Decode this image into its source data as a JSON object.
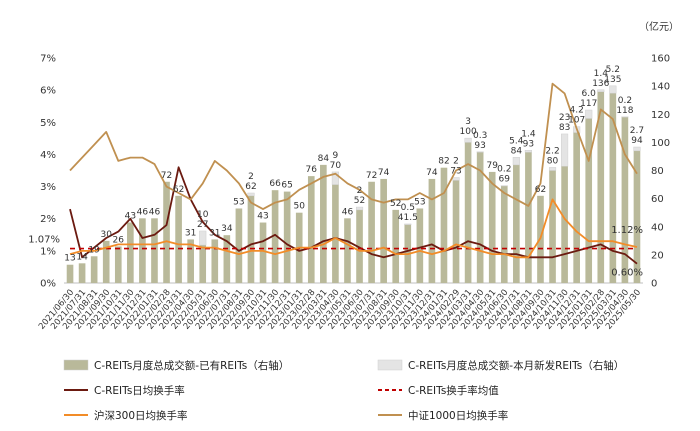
{
  "chart_data": {
    "type": "bar+line",
    "unit_right": "（亿元）",
    "categories": [
      "2021/06/30",
      "2021/07/31",
      "2021/08/31",
      "2021/09/30",
      "2021/10/31",
      "2021/11/30",
      "2021/12/31",
      "2022/01/31",
      "2022/02/28",
      "2022/03/31",
      "2022/04/30",
      "2022/05/31",
      "2022/06/30",
      "2022/07/31",
      "2022/08/31",
      "2022/09/30",
      "2022/10/31",
      "2022/11/30",
      "2022/12/31",
      "2023/01/31",
      "2023/02/28",
      "2023/03/31",
      "2023/04/30",
      "2023/05/31",
      "2023/06/30",
      "2023/07/31",
      "2023/08/31",
      "2023/09/30",
      "2023/10/31",
      "2023/11/30",
      "2023/12/31",
      "2024/01/31",
      "2024/02/29",
      "2024/03/31",
      "2024/04/30",
      "2024/05/31",
      "2024/06/30",
      "2024/07/31",
      "2024/08/31",
      "2024/09/30",
      "2024/10/31",
      "2024/11/30",
      "2024/12/31",
      "2025/01/31",
      "2025/02/28",
      "2025/03/31",
      "2025/04/30",
      "2025/05/30"
    ],
    "x_tick_labels": [
      "2021/06/30",
      "2021/07/31",
      "2021/08/31",
      "2021/09/30",
      "2021/10/31",
      "2021/11/30",
      "2021/12/31",
      "2022/01/31",
      "2022/02/28",
      "2022/03/31",
      "2022/04/30",
      "2022/05/31",
      "2022/06/30",
      "2022/07/31",
      "2022/08/31",
      "2022/09/30",
      "2022/10/31",
      "2022/11/30",
      "2022/12/31",
      "2023/01/31",
      "2023/02/28",
      "2023/03/31",
      "2023/04/30",
      "2023/05/31",
      "2023/06/30",
      "2023/07/31",
      "2023/08/31",
      "2023/09/30",
      "2023/10/31",
      "2023/11/30",
      "2023/12/31",
      "2024/01/31",
      "2024/02/29",
      "2024/03/31",
      "2024/04/30",
      "2024/05/31",
      "2024/06/30",
      "2024/07/31",
      "2024/08/31",
      "2024/09/30",
      "2024/10/31",
      "2024/11/30",
      "2024/12/31",
      "2025/01/31",
      "2025/02/28",
      "2025/03/31",
      "2025/04/30",
      "2025/05/30"
    ],
    "left_axis": {
      "min": 0,
      "max": 7,
      "step": 1,
      "format": "percent"
    },
    "right_axis": {
      "min": 0,
      "max": 160,
      "step": 20
    },
    "bars": [
      {
        "name": "C-REITs月度总成交额-已有REITs（右轴）",
        "color": "#b9b99a",
        "axis": "right",
        "values": [
          13,
          14,
          19,
          30,
          26,
          43,
          46,
          46,
          72,
          62,
          31,
          27,
          31,
          34,
          53,
          62,
          43,
          66,
          65,
          50,
          76,
          84,
          70,
          46,
          52,
          72,
          74,
          52,
          41.5,
          53,
          74,
          82,
          73,
          100,
          93,
          79,
          69,
          84,
          93,
          62,
          80,
          83,
          107,
          117,
          136,
          135,
          118,
          94
        ]
      },
      {
        "name": "C-REITs月度总成交额-本月新发REITs（右轴）",
        "color": "#e4e4e4",
        "axis": "right",
        "values": [
          0,
          0,
          0,
          0,
          0,
          0,
          0,
          0,
          0,
          0,
          0,
          10,
          0,
          0,
          0,
          2,
          0,
          0,
          0,
          0,
          0,
          0,
          9,
          0,
          2,
          0,
          0,
          0,
          0.5,
          0,
          0,
          0,
          2,
          3,
          0.3,
          0,
          0.2,
          5.4,
          1.4,
          0,
          2.2,
          23,
          4.2,
          6.0,
          1.4,
          5.2,
          0.2,
          2.7
        ]
      }
    ],
    "bar_labels_existing": [
      "13",
      "14",
      "19",
      "30",
      "26",
      "43",
      "46",
      "46",
      "72",
      "62",
      "31",
      "27",
      "31",
      "34",
      "53",
      "62",
      "43",
      "66",
      "65",
      "50",
      "76",
      "84",
      "70",
      "46",
      "52",
      "72",
      "74",
      "52",
      "41.5",
      "53",
      "74",
      "82",
      "73",
      "100",
      "93",
      "79",
      "69",
      "84",
      "93",
      "62",
      "80",
      "83",
      "107",
      "117",
      "136",
      "135",
      "118",
      "94"
    ],
    "bar_labels_new": [
      "",
      "",
      "",
      "",
      "",
      "",
      "",
      "",
      "",
      "",
      "",
      "10",
      "",
      "",
      "",
      "2",
      "",
      "",
      "",
      "",
      "",
      "",
      "9",
      "",
      "2",
      "",
      "",
      "",
      "0.5",
      "",
      "",
      "",
      "2",
      "3",
      "0.3",
      "",
      "0.2",
      "5.4",
      "1.4",
      "",
      "2.2",
      "23",
      "4.2",
      "6.0",
      "1.4",
      "5.2",
      "0.2",
      "2.7"
    ],
    "lines": [
      {
        "name": "C-REITs日均换手率",
        "color": "#6b1a10",
        "axis": "left",
        "dash": "",
        "values": [
          2.3,
          0.8,
          1.1,
          1.4,
          1.6,
          2.0,
          1.4,
          1.5,
          1.8,
          3.6,
          2.6,
          1.9,
          1.5,
          1.3,
          1.0,
          1.2,
          1.3,
          1.5,
          1.2,
          1.0,
          1.1,
          1.3,
          1.4,
          1.3,
          1.1,
          0.9,
          0.8,
          0.9,
          1.0,
          1.1,
          1.2,
          1.0,
          1.1,
          1.3,
          1.2,
          1.0,
          0.9,
          0.9,
          0.8,
          0.8,
          0.8,
          0.9,
          1.0,
          1.1,
          1.2,
          1.0,
          0.9,
          0.6
        ]
      },
      {
        "name": "C-REITs换手率均值",
        "color": "#c00000",
        "axis": "left",
        "dash": "5,4",
        "values": [
          1.07,
          1.07,
          1.07,
          1.07,
          1.07,
          1.07,
          1.07,
          1.07,
          1.07,
          1.07,
          1.07,
          1.07,
          1.07,
          1.07,
          1.07,
          1.07,
          1.07,
          1.07,
          1.07,
          1.07,
          1.07,
          1.07,
          1.07,
          1.07,
          1.07,
          1.07,
          1.07,
          1.07,
          1.07,
          1.07,
          1.07,
          1.07,
          1.07,
          1.07,
          1.07,
          1.07,
          1.07,
          1.07,
          1.07,
          1.07,
          1.07,
          1.07,
          1.07,
          1.07,
          1.07,
          1.07,
          1.07,
          1.07
        ]
      },
      {
        "name": "沪深300日均换手率",
        "color": "#f28c28",
        "axis": "left",
        "dash": "",
        "values": [
          0.9,
          1.0,
          1.0,
          1.1,
          1.2,
          1.2,
          1.2,
          1.2,
          1.3,
          1.2,
          1.2,
          1.1,
          1.1,
          1.0,
          0.9,
          1.0,
          1.0,
          0.9,
          1.0,
          1.1,
          1.1,
          1.2,
          1.4,
          1.2,
          1.0,
          1.0,
          1.1,
          0.9,
          0.9,
          1.0,
          0.9,
          1.0,
          1.2,
          1.1,
          1.0,
          0.9,
          0.9,
          0.8,
          0.8,
          1.4,
          2.6,
          2.0,
          1.6,
          1.3,
          1.3,
          1.3,
          1.2,
          1.12
        ]
      },
      {
        "name": "中证1000日均换手率",
        "color": "#c09050",
        "axis": "left",
        "dash": "",
        "values": [
          3.5,
          3.9,
          4.3,
          4.7,
          3.8,
          3.9,
          3.9,
          3.7,
          3.0,
          2.8,
          2.6,
          3.1,
          3.8,
          3.5,
          3.1,
          2.5,
          2.3,
          2.5,
          2.6,
          2.9,
          3.1,
          3.3,
          3.4,
          3.1,
          2.9,
          2.6,
          2.5,
          2.6,
          2.6,
          2.8,
          2.6,
          2.8,
          3.5,
          3.7,
          3.5,
          3.1,
          2.8,
          2.6,
          2.4,
          3.1,
          6.2,
          5.9,
          4.8,
          3.8,
          5.4,
          5.1,
          4.0,
          3.4
        ]
      }
    ],
    "annotations": [
      {
        "text": "1.07%",
        "axis": "left",
        "index": 0,
        "value": 1.07
      },
      {
        "text": "1.12%",
        "axis": "left",
        "index": 47,
        "value": 1.12
      },
      {
        "text": "0.60%",
        "axis": "left",
        "index": 47,
        "value": 0.6
      }
    ],
    "legend": [
      {
        "name": "C-REITs月度总成交额-已有REITs（右轴）",
        "kind": "bar",
        "color": "#b9b99a"
      },
      {
        "name": "C-REITs月度总成交额-本月新发REITs（右轴）",
        "kind": "bar",
        "color": "#e4e4e4"
      },
      {
        "name": "C-REITs日均换手率",
        "kind": "line",
        "color": "#6b1a10"
      },
      {
        "name": "C-REITs换手率均值",
        "kind": "dash",
        "color": "#c00000"
      },
      {
        "name": "沪深300日均换手率",
        "kind": "line",
        "color": "#f28c28"
      },
      {
        "name": "中证1000日均换手率",
        "kind": "line",
        "color": "#c09050"
      }
    ],
    "legend_position": "bottom"
  }
}
